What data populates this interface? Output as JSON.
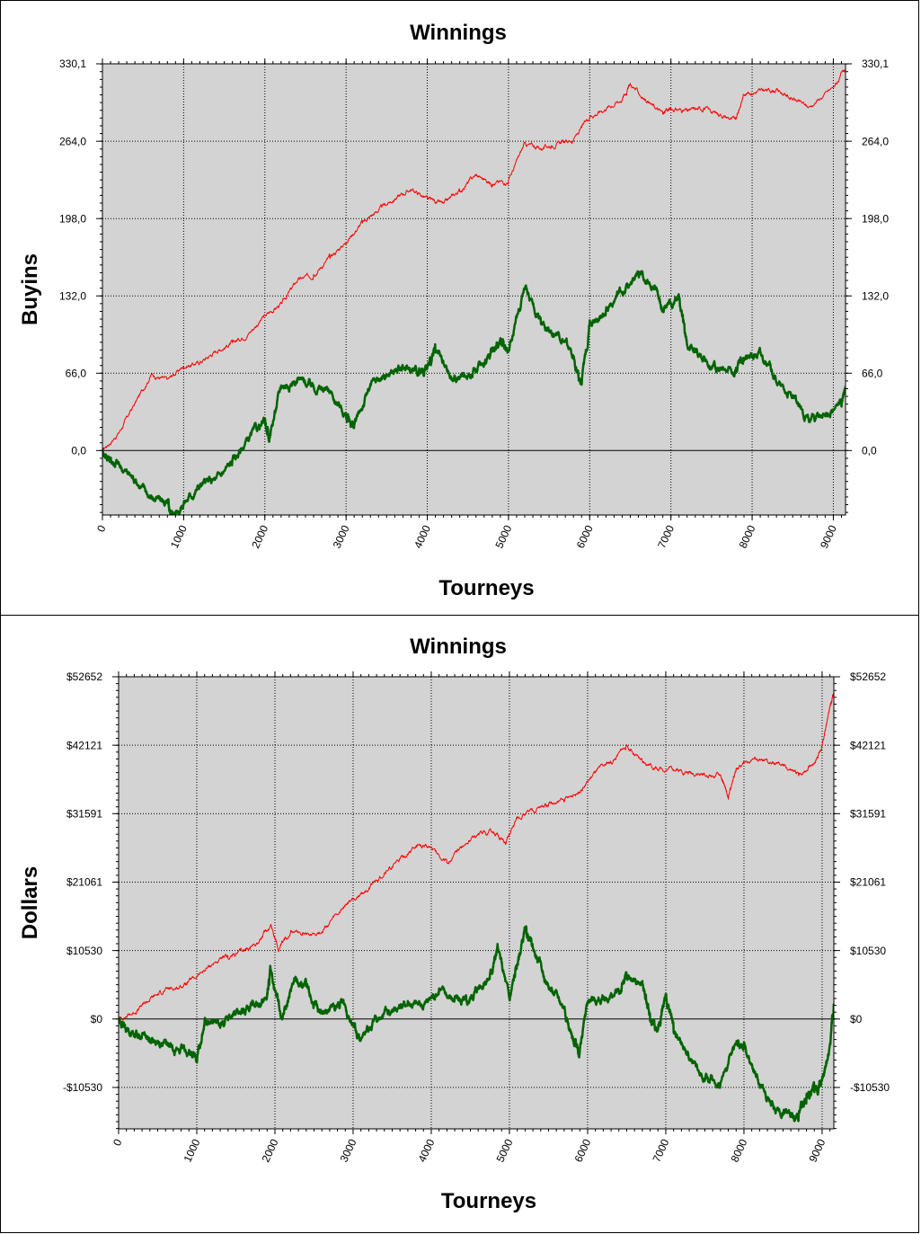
{
  "chart_data": [
    {
      "type": "line",
      "title": "Winnings",
      "xlabel": "Tourneys",
      "ylabel": "Buyins",
      "xlim": [
        0,
        9150
      ],
      "ylim": [
        -55,
        330.1
      ],
      "xticks": [
        "0",
        "1000",
        "2000",
        "3000",
        "4000",
        "5000",
        "6000",
        "7000",
        "8000",
        "9000"
      ],
      "yticks": [
        {
          "value": 0,
          "label": "0,0"
        },
        {
          "value": 66,
          "label": "66,0"
        },
        {
          "value": 132,
          "label": "132,0"
        },
        {
          "value": 198,
          "label": "198,0"
        },
        {
          "value": 264,
          "label": "264,0"
        },
        {
          "value": 330.1,
          "label": "330,1"
        }
      ],
      "grid": true,
      "series": [
        {
          "color": "#ff0000",
          "x": [
            0,
            200,
            400,
            600,
            800,
            1000,
            1200,
            1400,
            1600,
            1800,
            2000,
            2200,
            2400,
            2600,
            2800,
            3000,
            3200,
            3400,
            3600,
            3800,
            4000,
            4200,
            4400,
            4600,
            4800,
            5000,
            5200,
            5400,
            5600,
            5800,
            6000,
            6200,
            6400,
            6500,
            6700,
            6900,
            7000,
            7200,
            7400,
            7600,
            7800,
            7900,
            8100,
            8300,
            8500,
            8700,
            9000,
            9150
          ],
          "y": [
            0,
            15,
            40,
            65,
            60,
            72,
            75,
            85,
            92,
            100,
            115,
            125,
            145,
            150,
            165,
            178,
            195,
            205,
            215,
            223,
            215,
            210,
            222,
            235,
            228,
            230,
            262,
            258,
            262,
            265,
            285,
            292,
            300,
            313,
            298,
            288,
            292,
            290,
            292,
            287,
            282,
            305,
            307,
            308,
            300,
            293,
            310,
            325
          ]
        },
        {
          "color": "#006400",
          "x": [
            0,
            100,
            200,
            400,
            600,
            800,
            850,
            1000,
            1200,
            1400,
            1600,
            1800,
            2000,
            2050,
            2200,
            2400,
            2600,
            2800,
            3000,
            3100,
            3300,
            3500,
            3700,
            3900,
            4000,
            4100,
            4300,
            4500,
            4700,
            4800,
            4900,
            5000,
            5200,
            5400,
            5600,
            5800,
            5900,
            6000,
            6200,
            6400,
            6600,
            6800,
            6900,
            7100,
            7200,
            7400,
            7600,
            7800,
            7900,
            8100,
            8300,
            8500,
            8700,
            8900,
            9100,
            9150
          ],
          "y": [
            0,
            -8,
            -12,
            -25,
            -40,
            -45,
            -55,
            -45,
            -30,
            -25,
            -10,
            10,
            25,
            10,
            55,
            60,
            55,
            50,
            30,
            20,
            55,
            65,
            70,
            68,
            70,
            85,
            60,
            65,
            75,
            85,
            95,
            85,
            140,
            110,
            100,
            80,
            55,
            110,
            120,
            135,
            150,
            140,
            120,
            130,
            90,
            80,
            68,
            70,
            80,
            85,
            60,
            45,
            25,
            30,
            40,
            55
          ]
        }
      ]
    },
    {
      "type": "line",
      "title": "Winnings",
      "xlabel": "Tourneys",
      "ylabel": "Dollars",
      "xlim": [
        0,
        9150
      ],
      "ylim": [
        -16900,
        52652
      ],
      "xticks": [
        "0",
        "1000",
        "2000",
        "3000",
        "4000",
        "5000",
        "6000",
        "7000",
        "8000",
        "9000"
      ],
      "yticks": [
        {
          "value": -10530,
          "label": "-$10530"
        },
        {
          "value": 0,
          "label": "$0"
        },
        {
          "value": 10530,
          "label": "$10530"
        },
        {
          "value": 21061,
          "label": "$21061"
        },
        {
          "value": 31591,
          "label": "$31591"
        },
        {
          "value": 42121,
          "label": "$42121"
        },
        {
          "value": 52652,
          "label": "$52652"
        }
      ],
      "grid": true,
      "series": [
        {
          "color": "#ff0000",
          "x": [
            0,
            200,
            400,
            600,
            800,
            1000,
            1200,
            1400,
            1600,
            1800,
            1950,
            2050,
            2200,
            2400,
            2600,
            2800,
            3000,
            3200,
            3400,
            3600,
            3800,
            4000,
            4200,
            4400,
            4600,
            4800,
            4950,
            5100,
            5300,
            5500,
            5700,
            5900,
            6100,
            6300,
            6500,
            6700,
            6900,
            7100,
            7300,
            7500,
            7700,
            7800,
            7900,
            8100,
            8300,
            8500,
            8700,
            8900,
            9000,
            9100,
            9150
          ],
          "y": [
            0,
            1000,
            3000,
            4500,
            5000,
            6500,
            8500,
            9500,
            10500,
            12000,
            14500,
            10500,
            13500,
            13000,
            13500,
            16000,
            18500,
            20000,
            22500,
            24500,
            26500,
            26500,
            24000,
            26500,
            28500,
            28800,
            27000,
            31000,
            32000,
            33000,
            33500,
            35000,
            38000,
            39500,
            42000,
            39500,
            38500,
            38500,
            38000,
            37500,
            37500,
            34000,
            38500,
            40000,
            39500,
            39000,
            37500,
            39500,
            42000,
            48000,
            50500
          ]
        },
        {
          "color": "#006400",
          "x": [
            0,
            100,
            300,
            500,
            700,
            900,
            1000,
            1100,
            1300,
            1500,
            1700,
            1900,
            1950,
            2100,
            2250,
            2400,
            2550,
            2700,
            2850,
            3000,
            3100,
            3300,
            3500,
            3700,
            3900,
            4100,
            4300,
            4450,
            4600,
            4750,
            4850,
            5000,
            5100,
            5200,
            5300,
            5500,
            5700,
            5800,
            5900,
            6000,
            6200,
            6400,
            6500,
            6700,
            6800,
            6900,
            7000,
            7100,
            7300,
            7500,
            7700,
            7900,
            8000,
            8200,
            8400,
            8600,
            8700,
            8800,
            8900,
            9000,
            9100,
            9150
          ],
          "y": [
            0,
            -1500,
            -2500,
            -3500,
            -4500,
            -5000,
            -6500,
            0,
            -1000,
            500,
            2000,
            3500,
            7500,
            0,
            6000,
            5000,
            1000,
            1500,
            2500,
            -1000,
            -3000,
            0,
            1500,
            2500,
            2000,
            4500,
            3000,
            2500,
            5000,
            6500,
            11000,
            3000,
            8500,
            13500,
            11000,
            5000,
            2000,
            -3000,
            -5000,
            3000,
            3000,
            4000,
            6500,
            5500,
            0,
            -1500,
            3500,
            -2000,
            -6000,
            -9000,
            -10000,
            -3500,
            -4000,
            -10000,
            -14000,
            -14500,
            -15000,
            -12000,
            -11000,
            -9000,
            -4000,
            2000
          ]
        }
      ]
    }
  ]
}
